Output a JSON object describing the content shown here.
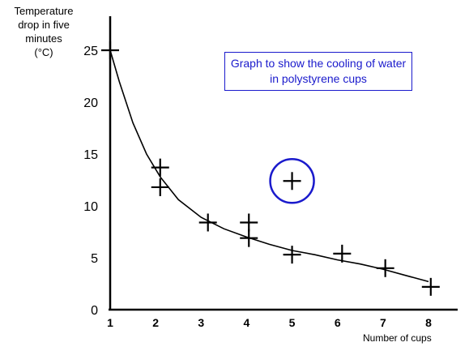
{
  "chart_data": {
    "type": "scatter",
    "title": "Graph to show the cooling of water in polystyrene cups",
    "ylabel_lines": [
      "Temperature",
      "drop in five",
      "minutes",
      "(°C)"
    ],
    "xlabel": "Number of cups",
    "xlim": [
      1,
      8
    ],
    "ylim": [
      0,
      25
    ],
    "x_ticks": [
      1,
      2,
      3,
      4,
      5,
      6,
      7,
      8
    ],
    "y_ticks": [
      0,
      5,
      10,
      15,
      20,
      25
    ],
    "grid": false,
    "series": [
      {
        "points": [
          {
            "x": 1,
            "y": 25
          },
          {
            "x": 2.1,
            "y": 13.7
          },
          {
            "x": 2.1,
            "y": 11.8
          },
          {
            "x": 3.15,
            "y": 8.4
          },
          {
            "x": 4.05,
            "y": 8.4
          },
          {
            "x": 4.05,
            "y": 6.9
          },
          {
            "x": 5,
            "y": 5.3
          },
          {
            "x": 5,
            "y": 12.4
          },
          {
            "x": 6.1,
            "y": 5.4
          },
          {
            "x": 7.05,
            "y": 4.0
          },
          {
            "x": 8.05,
            "y": 2.2
          }
        ],
        "marker": "plus"
      }
    ],
    "trend_curve": [
      {
        "x": 1,
        "y": 25
      },
      {
        "x": 1.2,
        "y": 22
      },
      {
        "x": 1.5,
        "y": 18
      },
      {
        "x": 1.8,
        "y": 15
      },
      {
        "x": 2.1,
        "y": 12.8
      },
      {
        "x": 2.5,
        "y": 10.6
      },
      {
        "x": 3,
        "y": 8.9
      },
      {
        "x": 3.5,
        "y": 7.8
      },
      {
        "x": 4,
        "y": 7.0
      },
      {
        "x": 4.5,
        "y": 6.3
      },
      {
        "x": 5,
        "y": 5.7
      },
      {
        "x": 5.5,
        "y": 5.3
      },
      {
        "x": 6,
        "y": 4.8
      },
      {
        "x": 6.5,
        "y": 4.4
      },
      {
        "x": 7,
        "y": 3.9
      },
      {
        "x": 7.5,
        "y": 3.3
      },
      {
        "x": 8,
        "y": 2.7
      }
    ],
    "outlier": {
      "x": 5,
      "y": 12.4
    },
    "colors": {
      "axis": "#000000",
      "curve": "#000000",
      "highlight": "#1a1acc"
    }
  }
}
